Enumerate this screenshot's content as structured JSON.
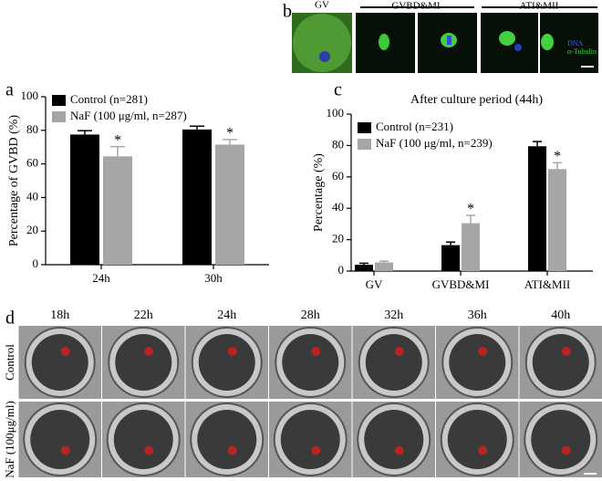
{
  "chart_data": [
    {
      "type": "bar",
      "panel_label": "a",
      "ylabel": "Percentage of GVBD (%)",
      "categories": [
        "24h",
        "30h"
      ],
      "series": [
        {
          "name": "Control (n=281)",
          "color": "#000000",
          "values": [
            77.5,
            80.5
          ],
          "errors": [
            2.3,
            2.0
          ],
          "labels": [
            null,
            null
          ]
        },
        {
          "name": "NaF (100 μg/ml, n=287)",
          "color": "#a6a6a6",
          "values": [
            64.5,
            71.5
          ],
          "errors": [
            5.8,
            3.0
          ],
          "labels": [
            "*",
            "*"
          ]
        }
      ],
      "ylim": [
        0,
        100
      ],
      "yticks": [
        0,
        20,
        40,
        60,
        80,
        100
      ],
      "legend": "top-left"
    },
    {
      "type": "bar",
      "panel_label": "c",
      "title": "After culture period (44h)",
      "ylabel": "Percentage (%)",
      "categories": [
        "GV",
        "GVBD&MI",
        "ATI&MII"
      ],
      "series": [
        {
          "name": "Control (n=231)",
          "color": "#000000",
          "values": [
            4,
            16.5,
            79.5
          ],
          "errors": [
            1,
            2,
            3
          ],
          "labels": [
            null,
            null,
            null
          ]
        },
        {
          "name": "NaF (100 μg/ml, n=239)",
          "color": "#a6a6a6",
          "values": [
            5.5,
            30.5,
            65
          ],
          "errors": [
            0.8,
            5,
            4
          ],
          "labels": [
            null,
            "*",
            "*"
          ]
        }
      ],
      "ylim": [
        0,
        100
      ],
      "yticks": [
        0,
        20,
        40,
        60,
        80,
        100
      ],
      "legend": "top-left"
    }
  ],
  "panel_b": {
    "letter": "b",
    "groups": [
      "GV",
      "GVBD&MI",
      "ATI&MII"
    ],
    "stains": [
      "DNA",
      "α-Tubulin"
    ]
  },
  "panel_d": {
    "letter": "d",
    "times": [
      "18h",
      "22h",
      "24h",
      "28h",
      "32h",
      "36h",
      "40h"
    ],
    "rows": [
      "Control",
      "NaF (100μg/ml)"
    ]
  }
}
